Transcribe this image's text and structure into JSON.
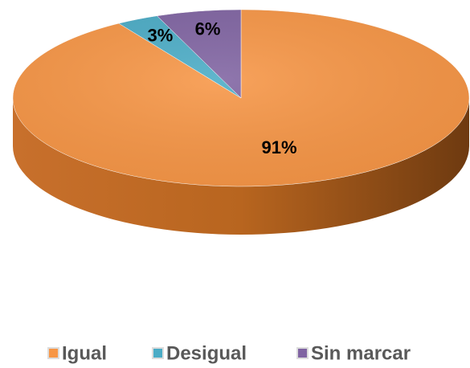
{
  "chart_data": {
    "type": "pie",
    "categories": [
      "Igual",
      "Desigual",
      "Sin marcar"
    ],
    "values": [
      91,
      3,
      6
    ],
    "value_labels": [
      "91%",
      "3%",
      "6%"
    ],
    "colors": [
      "#f79646",
      "#4bacc6",
      "#8064a2"
    ],
    "legend": "bottom"
  }
}
